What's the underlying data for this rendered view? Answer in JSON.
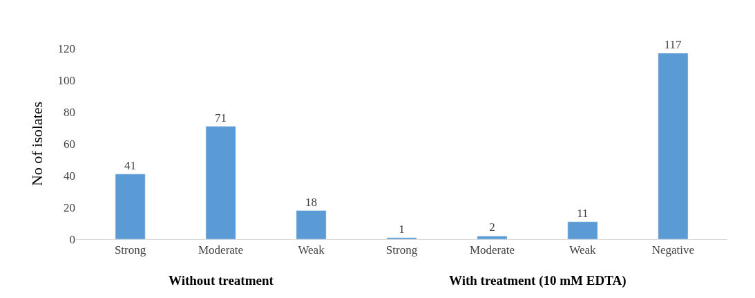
{
  "chart_data": {
    "type": "bar",
    "ylabel": "No of isolates",
    "categories": [
      "Strong",
      "Moderate",
      "Weak",
      "Strong",
      "Moderate",
      "Weak",
      "Negative"
    ],
    "values": [
      41,
      71,
      18,
      1,
      2,
      11,
      117
    ],
    "color": "#5b9bd5",
    "ylim": [
      0,
      120
    ],
    "yticks": [
      0,
      20,
      40,
      60,
      80,
      100,
      120
    ],
    "data_labels": true,
    "annotations": [
      "Without treatment",
      "With treatment (10 mM EDTA)"
    ]
  }
}
